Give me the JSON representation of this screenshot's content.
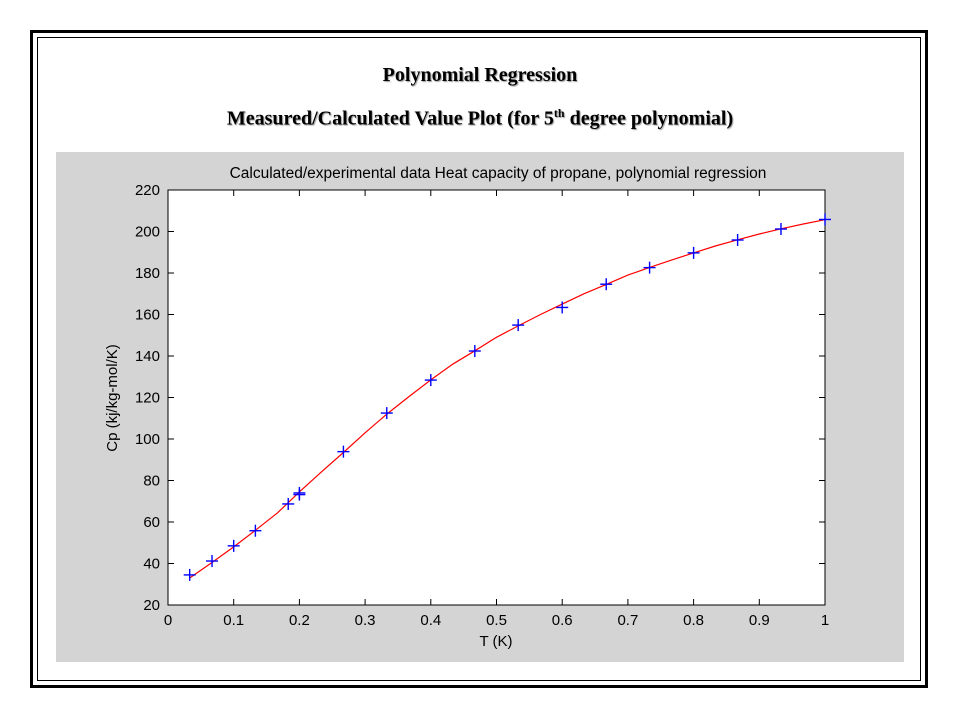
{
  "slide": {
    "heading_line1": "Polynomial Regression",
    "heading_line2_prefix": "Measured/Calculated Value Plot (for 5",
    "heading_line2_sup": "th",
    "heading_line2_suffix": " degree polynomial)"
  },
  "chart_data": {
    "type": "line",
    "title": "Calculated/experimental data Heat capacity of propane, polynomial regression",
    "xlabel": "T (K)",
    "ylabel": "Cp (kj/kg-mol/K)",
    "xlim": [
      0,
      1
    ],
    "ylim": [
      20,
      220
    ],
    "xticks": [
      0,
      0.1,
      0.2,
      0.3,
      0.4,
      0.5,
      0.6,
      0.7,
      0.8,
      0.9,
      1
    ],
    "xtick_labels": [
      "0",
      "0.1",
      "0.2",
      "0.3",
      "0.4",
      "0.5",
      "0.6",
      "0.7",
      "0.8",
      "0.9",
      "1"
    ],
    "yticks": [
      20,
      40,
      60,
      80,
      100,
      120,
      140,
      160,
      180,
      200,
      220
    ],
    "ytick_labels": [
      "20",
      "40",
      "60",
      "80",
      "100",
      "120",
      "140",
      "160",
      "180",
      "200",
      "220"
    ],
    "grid": false,
    "series": [
      {
        "style": "markers",
        "marker": "plus",
        "color": "#0000ff",
        "x": [
          0.033,
          0.067,
          0.1,
          0.133,
          0.183,
          0.2,
          0.2,
          0.267,
          0.333,
          0.4,
          0.467,
          0.533,
          0.6,
          0.667,
          0.733,
          0.8,
          0.867,
          0.933,
          1.0
        ],
        "y": [
          34.5,
          41.2,
          48.5,
          55.8,
          68.7,
          73.2,
          74.0,
          93.9,
          112.5,
          128.4,
          142.4,
          154.9,
          163.4,
          174.6,
          182.6,
          189.7,
          195.9,
          201.2,
          205.8
        ]
      },
      {
        "style": "line",
        "color": "#ff0000",
        "x": [
          0.033,
          0.067,
          0.1,
          0.133,
          0.167,
          0.2,
          0.233,
          0.267,
          0.3,
          0.333,
          0.367,
          0.4,
          0.433,
          0.467,
          0.5,
          0.533,
          0.567,
          0.6,
          0.633,
          0.667,
          0.7,
          0.733,
          0.767,
          0.8,
          0.833,
          0.867,
          0.9,
          0.933,
          0.967,
          1.0
        ],
        "y": [
          33.0,
          40.5,
          48.0,
          56.0,
          64.5,
          74.5,
          84.0,
          93.5,
          103.0,
          112.0,
          120.5,
          128.5,
          136.0,
          142.5,
          149.0,
          154.5,
          160.0,
          165.0,
          170.0,
          174.5,
          179.0,
          182.7,
          186.3,
          189.7,
          193.0,
          196.0,
          198.8,
          201.3,
          203.6,
          205.7
        ]
      }
    ]
  }
}
